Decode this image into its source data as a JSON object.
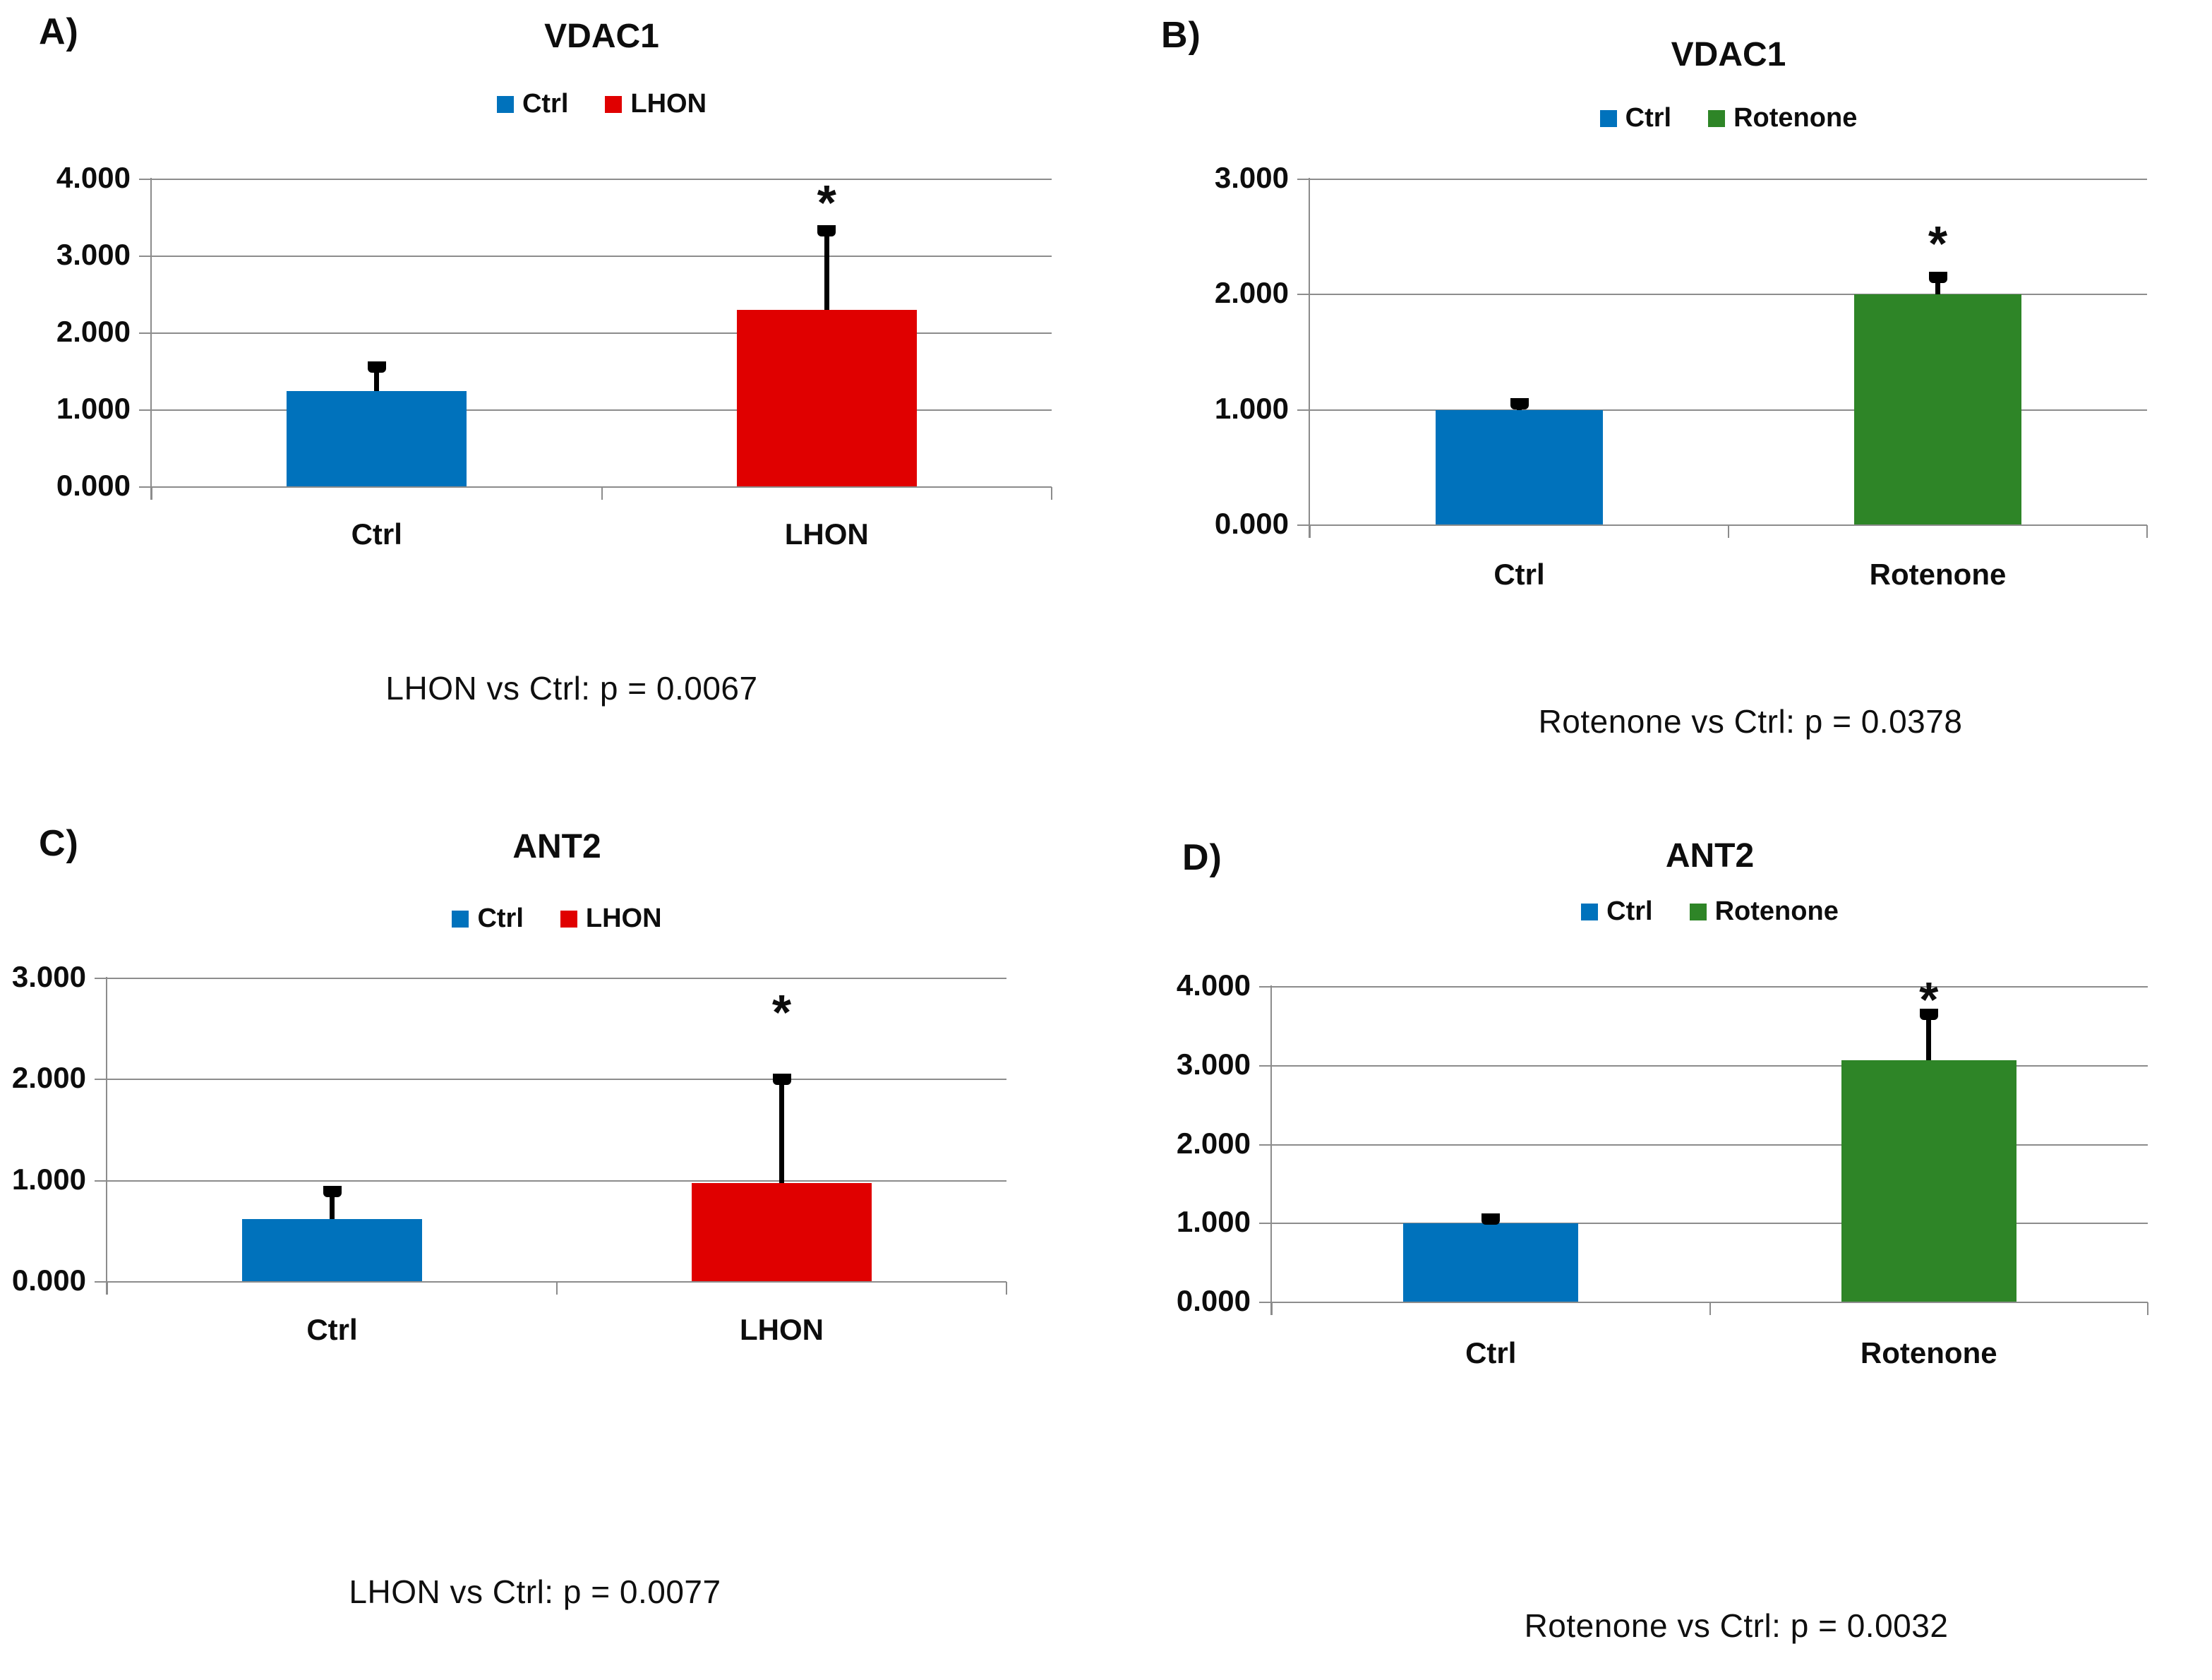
{
  "figure": {
    "background": "#ffffff"
  },
  "colors": {
    "ctrl_blue": "#0072BC",
    "lhon_red": "#E00000",
    "rotenone_green": "#2E8527",
    "gridline_gray": "#8c8c8c",
    "error_bar_black": "#000000"
  },
  "chart_data": [
    {
      "type": "bar",
      "panel_label": "A)",
      "title": "VDAC1",
      "legend": [
        "Ctrl",
        "LHON"
      ],
      "legend_position": "top-center",
      "colors": [
        "#0072BC",
        "#E00000"
      ],
      "categories": [
        "Ctrl",
        "LHON"
      ],
      "series": [
        {
          "name": "Ctrl",
          "value": 1.25,
          "error_top": 1.63
        },
        {
          "name": "LHON",
          "value": 2.3,
          "error_top": 3.4,
          "significance": "*",
          "significance_y": 3.78
        }
      ],
      "ylim": [
        0,
        4
      ],
      "yticks": [
        "0.000",
        "1.000",
        "2.000",
        "3.000",
        "4.000"
      ],
      "grid": true,
      "annotation": "LHON vs Ctrl: p = 0.0067"
    },
    {
      "type": "bar",
      "panel_label": "B)",
      "title": "VDAC1",
      "legend": [
        "Ctrl",
        "Rotenone"
      ],
      "legend_position": "top-center",
      "colors": [
        "#0072BC",
        "#2E8527"
      ],
      "categories": [
        "Ctrl",
        "Rotenone"
      ],
      "series": [
        {
          "name": "Ctrl",
          "value": 1.0,
          "error_top": 1.1
        },
        {
          "name": "Rotenone",
          "value": 2.0,
          "error_top": 2.2,
          "significance": "*",
          "significance_y": 2.5
        }
      ],
      "ylim": [
        0,
        3
      ],
      "yticks": [
        "0.000",
        "1.000",
        "2.000",
        "3.000"
      ],
      "grid": true,
      "annotation": "Rotenone vs Ctrl: p = 0.0378"
    },
    {
      "type": "bar",
      "panel_label": "C)",
      "title": "ANT2",
      "legend": [
        "Ctrl",
        "LHON"
      ],
      "legend_position": "top-center",
      "colors": [
        "#0072BC",
        "#E00000"
      ],
      "categories": [
        "Ctrl",
        "LHON"
      ],
      "series": [
        {
          "name": "Ctrl",
          "value": 0.62,
          "error_top": 0.95
        },
        {
          "name": "LHON",
          "value": 0.98,
          "error_top": 2.06,
          "significance": "*",
          "significance_y": 2.73
        }
      ],
      "ylim": [
        0,
        3
      ],
      "yticks": [
        "0.000",
        "1.000",
        "2.000",
        "3.000"
      ],
      "grid": true,
      "annotation": "LHON vs Ctrl: p = 0.0077"
    },
    {
      "type": "bar",
      "panel_label": "D)",
      "title": "ANT2",
      "legend": [
        "Ctrl",
        "Rotenone"
      ],
      "legend_position": "top-center",
      "colors": [
        "#0072BC",
        "#2E8527"
      ],
      "categories": [
        "Ctrl",
        "Rotenone"
      ],
      "series": [
        {
          "name": "Ctrl",
          "value": 1.0,
          "error_top": 1.13
        },
        {
          "name": "Rotenone",
          "value": 3.07,
          "error_top": 3.72,
          "significance": "*",
          "significance_y": 3.92
        }
      ],
      "ylim": [
        0,
        4
      ],
      "yticks": [
        "0.000",
        "1.000",
        "2.000",
        "3.000",
        "4.000"
      ],
      "grid": true,
      "annotation": "Rotenone vs Ctrl: p = 0.0032"
    }
  ]
}
